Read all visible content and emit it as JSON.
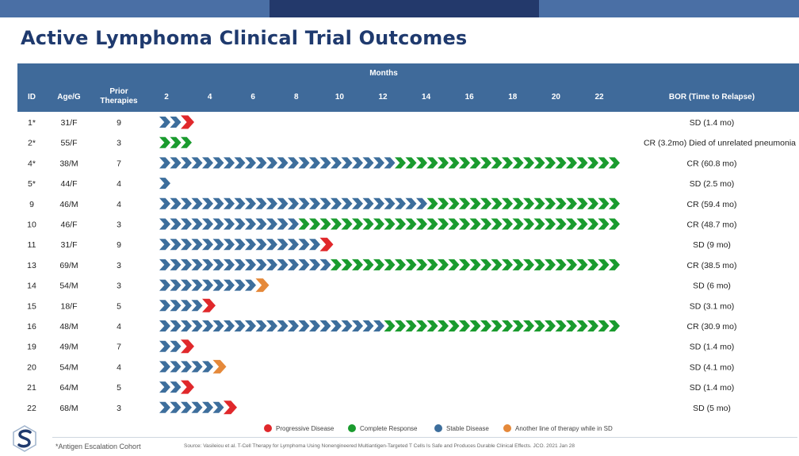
{
  "title": "Active Lymphoma Clinical Trial Outcomes",
  "colors": {
    "header_bg": "#3f6a9a",
    "stable": "#3d6e9c",
    "complete": "#1a9b2e",
    "progressive": "#e0282b",
    "another_line": "#e5893a",
    "title": "#1f3a6e"
  },
  "chart_data": {
    "type": "swimmer",
    "title": "Active Lymphoma Clinical Trial Outcomes",
    "xlabel": "Months",
    "x_ticks": [
      2,
      4,
      6,
      8,
      10,
      12,
      14,
      16,
      18,
      20,
      22
    ],
    "xlim": [
      0,
      23
    ],
    "columns": {
      "id": "ID",
      "age": "Age/G",
      "prior": "Prior Therapies",
      "months": "Months",
      "bor": "BOR (Time to Relapse)"
    },
    "legend": [
      {
        "key": "progressive",
        "label": "Progressive Disease",
        "color": "#e0282b"
      },
      {
        "key": "complete",
        "label": "Complete Response",
        "color": "#1a9b2e"
      },
      {
        "key": "stable",
        "label": "Stable Disease",
        "color": "#3d6e9c"
      },
      {
        "key": "another",
        "label": "Another line of therapy while in SD",
        "color": "#e5893a"
      }
    ],
    "patients": [
      {
        "id": "1*",
        "age": "31/F",
        "prior": "9",
        "stable_chevrons": 2,
        "complete_chevrons": 0,
        "end": "progressive",
        "bor": "SD (1.4 mo)"
      },
      {
        "id": "2*",
        "age": "55/F",
        "prior": "3",
        "stable_chevrons": 0,
        "complete_chevrons": 3,
        "end": null,
        "bor": "CR (3.2mo) Died of unrelated pneumonia"
      },
      {
        "id": "4*",
        "age": "38/M",
        "prior": "7",
        "stable_chevrons": 22,
        "complete_chevrons": 21,
        "end": null,
        "bor": "CR (60.8 mo)"
      },
      {
        "id": "5*",
        "age": "44/F",
        "prior": "4",
        "stable_chevrons": 1,
        "complete_chevrons": 0,
        "end": null,
        "bor": "SD (2.5 mo)"
      },
      {
        "id": "9",
        "age": "46/M",
        "prior": "4",
        "stable_chevrons": 25,
        "complete_chevrons": 18,
        "end": null,
        "bor": "CR (59.4 mo)"
      },
      {
        "id": "10",
        "age": "46/F",
        "prior": "3",
        "stable_chevrons": 13,
        "complete_chevrons": 30,
        "end": null,
        "bor": "CR (48.7 mo)"
      },
      {
        "id": "11",
        "age": "31/F",
        "prior": "9",
        "stable_chevrons": 15,
        "complete_chevrons": 0,
        "end": "progressive",
        "bor": "SD (9 mo)"
      },
      {
        "id": "13",
        "age": "69/M",
        "prior": "3",
        "stable_chevrons": 16,
        "complete_chevrons": 27,
        "end": null,
        "bor": "CR (38.5 mo)"
      },
      {
        "id": "14",
        "age": "54/M",
        "prior": "3",
        "stable_chevrons": 9,
        "complete_chevrons": 0,
        "end": "another",
        "bor": "SD (6 mo)"
      },
      {
        "id": "15",
        "age": "18/F",
        "prior": "5",
        "stable_chevrons": 4,
        "complete_chevrons": 0,
        "end": "progressive",
        "bor": "SD (3.1 mo)"
      },
      {
        "id": "16",
        "age": "48/M",
        "prior": "4",
        "stable_chevrons": 21,
        "complete_chevrons": 22,
        "end": null,
        "bor": "CR (30.9 mo)"
      },
      {
        "id": "19",
        "age": "49/M",
        "prior": "7",
        "stable_chevrons": 2,
        "complete_chevrons": 0,
        "end": "progressive",
        "bor": "SD (1.4 mo)"
      },
      {
        "id": "20",
        "age": "54/M",
        "prior": "4",
        "stable_chevrons": 5,
        "complete_chevrons": 0,
        "end": "another",
        "bor": "SD (4.1 mo)"
      },
      {
        "id": "21",
        "age": "64/M",
        "prior": "5",
        "stable_chevrons": 2,
        "complete_chevrons": 0,
        "end": "progressive",
        "bor": "SD (1.4 mo)"
      },
      {
        "id": "22",
        "age": "68/M",
        "prior": "3",
        "stable_chevrons": 6,
        "complete_chevrons": 0,
        "end": "progressive",
        "bor": "SD (5 mo)"
      }
    ]
  },
  "footer": {
    "footnote": "*Antigen Escalation Cohort",
    "source": "Source: Vasileiou et al. T-Cell Therapy for Lymphoma Using Nonengineered Multiantigen-Targeted T Cells Is Safe and Produces Durable Clinical Effects. JCO. 2021 Jan 28"
  }
}
